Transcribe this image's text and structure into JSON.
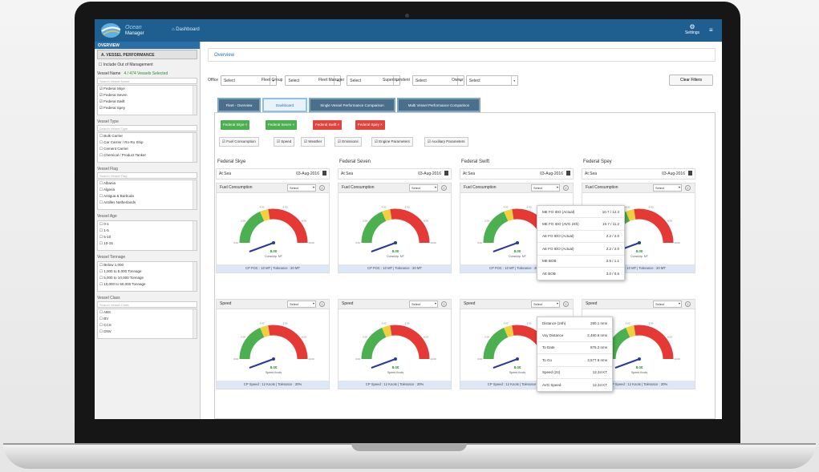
{
  "header": {
    "logo_title": "Ocean",
    "logo_subtitle": "Manager",
    "home_link": "Dashboard",
    "settings_label": "Settings"
  },
  "sidebar": {
    "overview": "OVERVIEW",
    "vessel_performance": "A. VESSEL PERFORMANCE",
    "include_out_of_management": "Include Out of Management",
    "vessel_name_label": "Vessel Name",
    "vessels_selected": "4 / 474 Vessels Selected",
    "sections": [
      {
        "label": "",
        "search_placeholder": "Search Vessel Name",
        "items": [
          "Federal Skye",
          "Federal Seven",
          "Federal Swift",
          "Federal Spey"
        ]
      },
      {
        "label": "Vessel Type",
        "search_placeholder": "Search Vessel Type",
        "items": [
          "Bulk Carrier",
          "Car Carrier / Ro-Ro Ship",
          "Cement Carrier",
          "Chemical / Product Tanker"
        ]
      },
      {
        "label": "Vessel Flag",
        "search_placeholder": "Search Vessel Flag",
        "items": [
          "Albania",
          "Algeria",
          "Antigua & Barbuda",
          "Antilles Netherlands"
        ]
      },
      {
        "label": "Vessel Age",
        "search_placeholder": "",
        "items": [
          "0-1",
          "1-5",
          "5-10",
          "10-15"
        ]
      },
      {
        "label": "Vessel Tonnage",
        "search_placeholder": "",
        "items": [
          "Below 1,000",
          "1,000 to 5,000 Tonnage",
          "5,000 to 10,000 Tonnage",
          "10,000 to 50,000 Tonnage"
        ]
      },
      {
        "label": "Vessel Class",
        "search_placeholder": "Search Vessel Class",
        "items": [
          "ABS",
          "BV",
          "CCS",
          "DNV"
        ]
      }
    ]
  },
  "main": {
    "breadcrumb": "Overview",
    "filters": [
      {
        "label": "Office",
        "value": "Select"
      },
      {
        "label": "Fleet Group",
        "value": "Select"
      },
      {
        "label": "Fleet Manager",
        "value": "Select"
      },
      {
        "label": "Superintendent",
        "value": "Select"
      },
      {
        "label": "Owner",
        "value": "Select"
      }
    ],
    "clear_filters": "Clear Filters",
    "tabs": [
      "Fleet - Overview",
      "Dashboard",
      "Single Vessel Performance Comparison",
      "Multi Vessel Performance Comparison"
    ],
    "active_tab": 1,
    "chips": [
      {
        "label": "Federal Skye",
        "color": "#4caf50"
      },
      {
        "label": "Federal Seven",
        "color": "#4caf50"
      },
      {
        "label": "Federal Swift",
        "color": "#e0443e"
      },
      {
        "label": "Federal Spey",
        "color": "#e0443e"
      }
    ],
    "parameters": [
      "Fuel Consumption",
      "Speed",
      "Weather",
      "Emissions",
      "Engine Parameters",
      "Auxiliary Parameters"
    ],
    "vessels": [
      {
        "name": "Federal Skye",
        "status": "At Sea",
        "date": "03-Aug-2016",
        "fc_label": "Fuel Consumption",
        "fc_select": "Select",
        "fc_value": "8.00",
        "fc_unit": "Consump. MT",
        "fc_footer": "CP FOC : 10 MT | Tolerance : 20 MT",
        "sp_label": "Speed",
        "sp_select": "Select",
        "sp_value": "8.00",
        "sp_unit": "Speed Knots",
        "sp_footer": "CP Speed : 12 Knots | Tolerance : 20%",
        "bottom_color": "#e0443e"
      },
      {
        "name": "Federal Seven",
        "status": "At Sea",
        "date": "03-Aug-2016",
        "fc_label": "Fuel Consumption",
        "fc_select": "Select",
        "fc_value": "8.00",
        "fc_unit": "Consump. MT",
        "fc_footer": "CP FOC : 10 MT | Tolerance : 20 MT",
        "sp_label": "Speed",
        "sp_select": "Select",
        "sp_value": "8.00",
        "sp_unit": "Speed Knots",
        "sp_footer": "CP Speed : 12 Knots | Tolerance : 20%",
        "bottom_color": "#4caf50"
      },
      {
        "name": "Federal Swift",
        "status": "At Sea",
        "date": "03-Aug-2016",
        "fc_label": "Fuel Consumption",
        "fc_select": "Select",
        "fc_value": "8.00",
        "fc_unit": "Consump. MT",
        "fc_footer": "CP FOC : 10 MT | Tolerance : 20 MT",
        "sp_label": "Speed",
        "sp_select": "Select",
        "sp_value": "8.00",
        "sp_unit": "Speed Knots",
        "sp_footer": "CP Speed : 12 Knots | Tolerance : 20%",
        "bottom_color": "#4caf50"
      },
      {
        "name": "Federal Spey",
        "status": "At Sea",
        "date": "03-Aug-2016",
        "fc_label": "Fuel Consumption",
        "fc_select": "Select",
        "fc_value": "8.00",
        "fc_unit": "Consump. MT",
        "fc_footer": "CP FOC : 10 MT | Tolerance : 20 MT",
        "sp_label": "Speed",
        "sp_select": "Select",
        "sp_value": "8.00",
        "sp_unit": "Speed Knots",
        "sp_footer": "CP Speed : 12 Knots | Tolerance : 20%",
        "bottom_color": "#4caf50"
      }
    ],
    "gauge_ticks": [
      "0.00",
      "2.00",
      "4.00",
      "6.00",
      "8.00",
      "10.00"
    ],
    "tooltip_fuel": [
      {
        "label": "ME FO IDO (Actual)",
        "value": "10.7 / 12.3"
      },
      {
        "label": "ME FO IDO (AVG 24h)",
        "value": "10.7 / 11.2"
      },
      {
        "label": "AE FO IDO (Actual)",
        "value": "2.2 / 2.0"
      },
      {
        "label": "AE FO IDO (Actual)",
        "value": "2.2 / 2.0"
      },
      {
        "label": "ME BOB",
        "value": "2.5 / 1.1"
      },
      {
        "label": "AE BOB",
        "value": "3.0 / 0.6"
      }
    ],
    "tooltip_speed": [
      {
        "label": "Distance (24h)",
        "value": "290.1 nms"
      },
      {
        "label": "Voy Distance",
        "value": "2,460.6 nms"
      },
      {
        "label": "To Date",
        "value": "876.2 nms"
      },
      {
        "label": "To Go",
        "value": "3,577.8 nms"
      },
      {
        "label": "Speed (24)",
        "value": "12.34 KT"
      },
      {
        "label": "AVG Speed",
        "value": "12.34 KT"
      }
    ]
  }
}
